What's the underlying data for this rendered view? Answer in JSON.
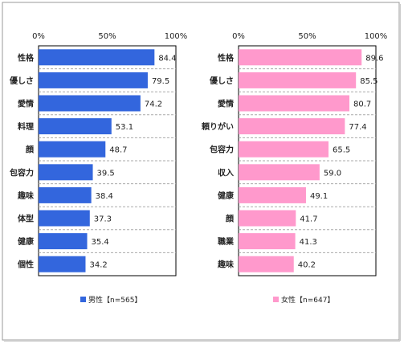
{
  "chart_data": [
    {
      "type": "bar",
      "orientation": "horizontal",
      "categories": [
        "性格",
        "優しさ",
        "愛情",
        "料理",
        "顔",
        "包容力",
        "趣味",
        "体型",
        "健康",
        "個性"
      ],
      "values": [
        84.4,
        79.5,
        74.2,
        53.1,
        48.7,
        39.5,
        38.4,
        37.3,
        35.4,
        34.2
      ],
      "xlim": [
        0,
        100
      ],
      "x_ticks": [
        "0%",
        "50%",
        "100%"
      ],
      "legend": "男性【n=565】",
      "color": "#3366dd",
      "legend_placement": "bottom"
    },
    {
      "type": "bar",
      "orientation": "horizontal",
      "categories": [
        "性格",
        "優しさ",
        "愛情",
        "頼りがい",
        "包容力",
        "収入",
        "健康",
        "顔",
        "職業",
        "趣味"
      ],
      "values": [
        89.6,
        85.5,
        80.7,
        77.4,
        65.5,
        59.0,
        49.1,
        41.7,
        41.3,
        40.2
      ],
      "xlim": [
        0,
        100
      ],
      "x_ticks": [
        "0%",
        "50%",
        "100%"
      ],
      "legend": "女性【n=647】",
      "color": "#ff99cc",
      "legend_placement": "bottom"
    }
  ]
}
